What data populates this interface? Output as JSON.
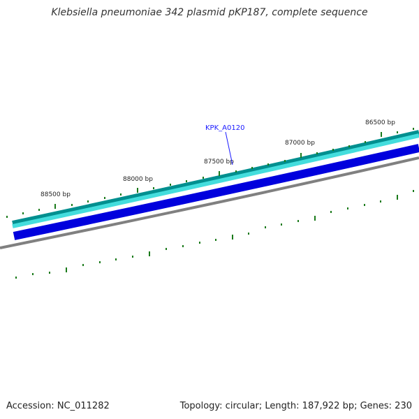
{
  "title": "Klebsiella pneumoniae 342 plasmid pKP187, complete sequence",
  "footer": {
    "accession": "Accession: NC_011282",
    "summary": "Topology: circular; Length: 187,922 bp; Genes: 230"
  },
  "map": {
    "tick_labels": [
      "88500 bp",
      "88000 bp",
      "87500 bp",
      "87000 bp",
      "86500 bp"
    ],
    "gene_label": "KPK_A0120",
    "colors": {
      "outer_track": "#00a0a0",
      "outer_track_fill": "#33cccc",
      "gene_track": "#0000dd",
      "backbone": "#808080",
      "ticks": "#1a7a1a",
      "gene_label": "#1a1aff"
    }
  }
}
